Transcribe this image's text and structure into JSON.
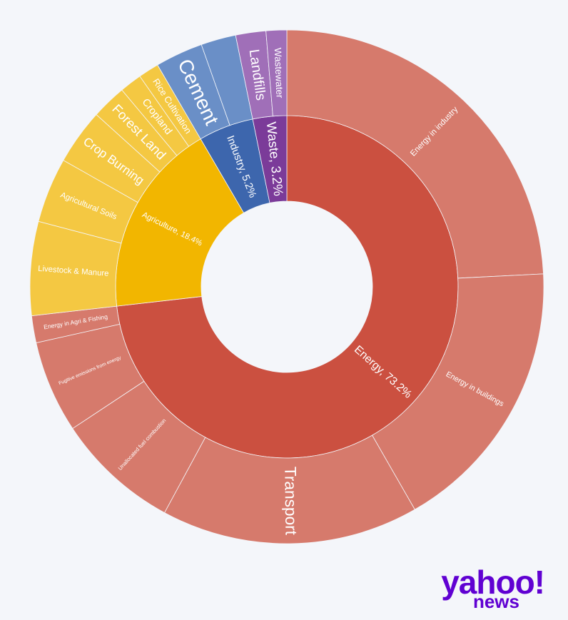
{
  "chart_data": {
    "type": "sunburst",
    "categories": [
      {
        "label": "Energy, 73.2%",
        "value": 73.2,
        "color": "#cb5040",
        "child_color": "#d67a6c",
        "children": [
          {
            "name": "Energy in industry",
            "value": 24.2
          },
          {
            "name": "Energy in buildings",
            "value": 17.5
          },
          {
            "name": "Transport",
            "value": 16.2
          },
          {
            "name": "Unallocated fuel combustion",
            "value": 7.8
          },
          {
            "name": "Fugitive emissions from energy",
            "value": 5.8
          },
          {
            "name": "Energy in Agri & Fishing",
            "value": 1.7
          }
        ]
      },
      {
        "label": "Agriculture, 18.4%",
        "value": 18.4,
        "color": "#f2b600",
        "child_color": "#f4c842",
        "children": [
          {
            "name": "Livestock & Manure",
            "value": 5.9
          },
          {
            "name": "Agricultural Soils",
            "value": 4.1
          },
          {
            "name": "Crop Burning",
            "value": 3.5
          },
          {
            "name": "Forest Land",
            "value": 2.2
          },
          {
            "name": "Cropland",
            "value": 1.4
          },
          {
            "name": "Rice Cultivation",
            "value": 1.3
          }
        ]
      },
      {
        "label": "Industry, 5.2%",
        "value": 5.2,
        "color": "#3d66ad",
        "child_color": "#6a8fc7",
        "children": [
          {
            "name": "Cement",
            "value": 3.0
          },
          {
            "name": null,
            "value": 2.2
          }
        ]
      },
      {
        "label": "Waste, 3.2%",
        "value": 3.2,
        "color": "#7b3b99",
        "child_color": "#a06fb8",
        "children": [
          {
            "name": "Landfills",
            "value": 1.9
          },
          {
            "name": "Wastewater",
            "value": 1.3
          }
        ]
      }
    ]
  },
  "logo": {
    "brand": "yahoo!",
    "section": "news"
  }
}
